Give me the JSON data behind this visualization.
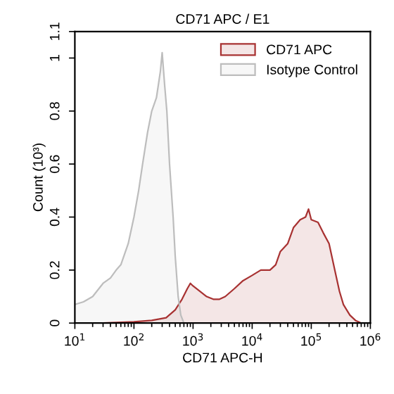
{
  "chart_data": {
    "type": "area",
    "title": "CD71 APC / E1",
    "xlabel": "CD71 APC-H",
    "ylabel": "Count (10³)",
    "log": "x",
    "xlim": [
      10,
      1000000
    ],
    "xticks": [
      {
        "value": 10,
        "label": "10$^{1}$"
      },
      {
        "value": 100,
        "label": "10$^{2}$"
      },
      {
        "value": 1000,
        "label": "10$^{3}$"
      },
      {
        "value": 10000,
        "label": "10$^{4}$"
      },
      {
        "value": 100000,
        "label": "10$^{5}$"
      },
      {
        "value": 1000000,
        "label": "10$^{6}$"
      }
    ],
    "ylim": [
      0,
      1.1
    ],
    "yticks": [
      0,
      0.2,
      0.4,
      0.6,
      0.8,
      1,
      1.1
    ],
    "grid": false,
    "legend": "top right",
    "series": [
      {
        "name": "CD71 APC",
        "color": "#a83232",
        "x": [
          30,
          100,
          200,
          350,
          500,
          650,
          800,
          900,
          1000,
          1300,
          1700,
          2200,
          2800,
          3500,
          5000,
          7000,
          10000,
          14000,
          20000,
          25000,
          30000,
          40000,
          50000,
          65000,
          80000,
          90000,
          100000,
          130000,
          160000,
          200000,
          250000,
          300000,
          350000,
          450000,
          560000,
          700000
        ],
        "values": [
          0,
          0.005,
          0.01,
          0.02,
          0.05,
          0.09,
          0.13,
          0.15,
          0.14,
          0.12,
          0.1,
          0.09,
          0.09,
          0.1,
          0.13,
          0.16,
          0.18,
          0.2,
          0.2,
          0.22,
          0.27,
          0.3,
          0.36,
          0.39,
          0.4,
          0.43,
          0.39,
          0.38,
          0.34,
          0.3,
          0.2,
          0.12,
          0.07,
          0.03,
          0.01,
          0
        ]
      },
      {
        "name": "Isotype Control",
        "color": "#bdbdbd",
        "x": [
          10,
          14,
          20,
          30,
          40,
          50,
          60,
          80,
          100,
          120,
          140,
          170,
          200,
          240,
          280,
          300,
          330,
          360,
          400,
          460,
          500,
          560,
          620,
          700
        ],
        "values": [
          0.07,
          0.08,
          0.1,
          0.15,
          0.17,
          0.2,
          0.22,
          0.3,
          0.4,
          0.5,
          0.6,
          0.72,
          0.8,
          0.85,
          0.95,
          1.02,
          0.9,
          0.8,
          0.6,
          0.4,
          0.25,
          0.1,
          0.03,
          0
        ]
      }
    ]
  }
}
